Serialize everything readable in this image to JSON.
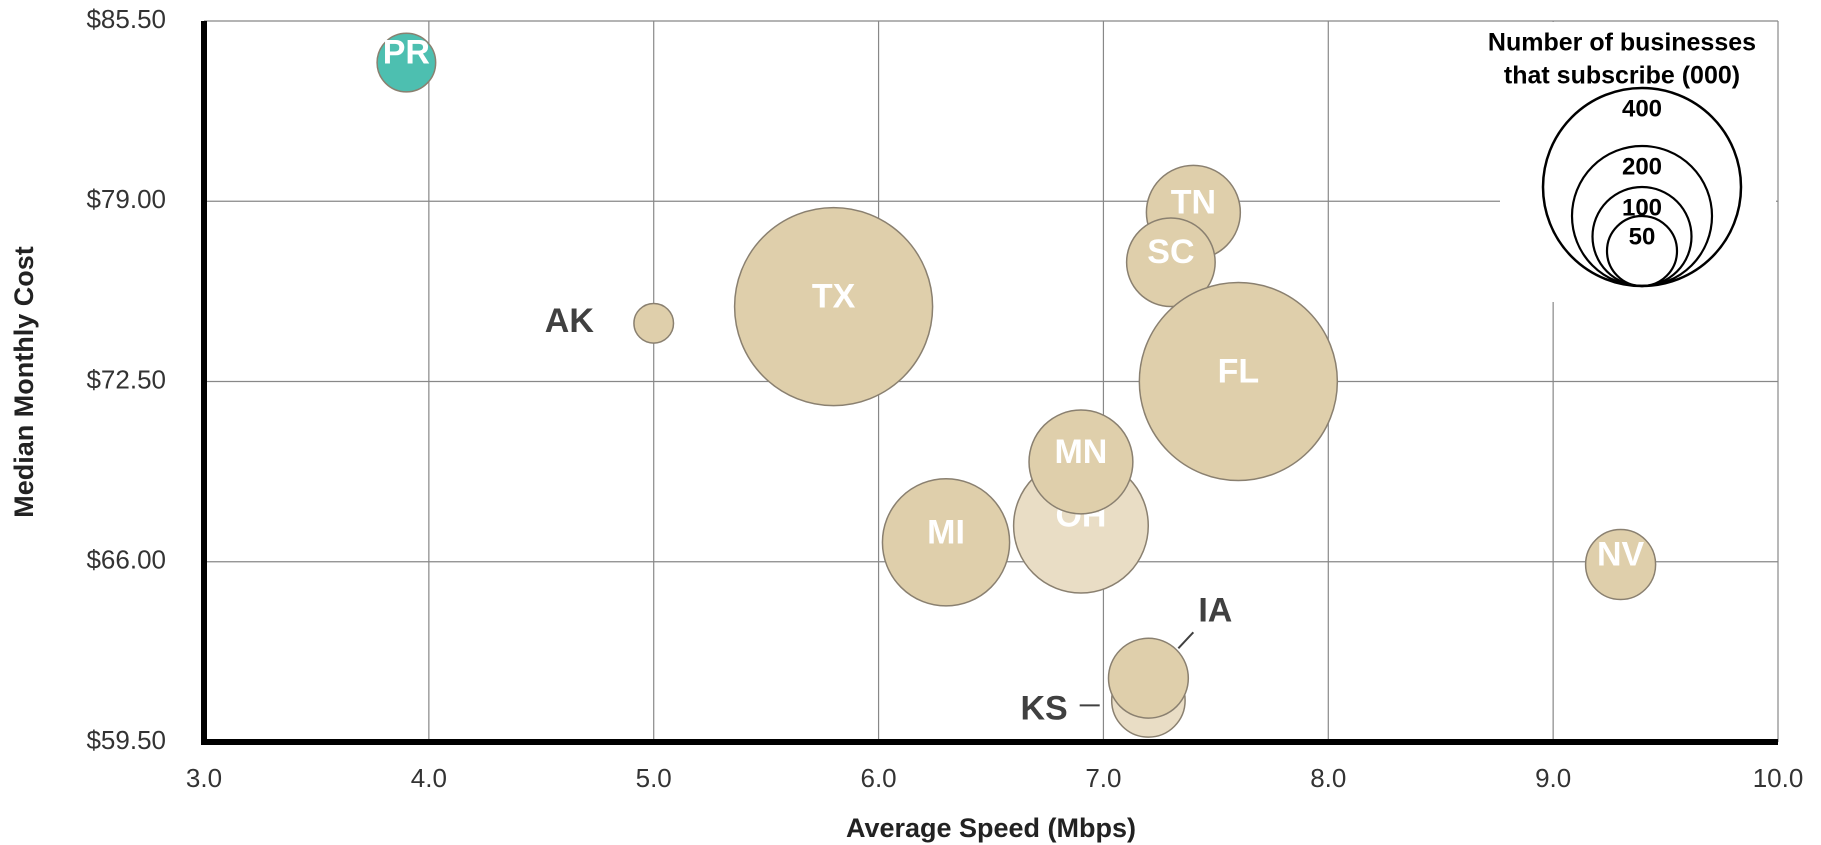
{
  "chart_data": {
    "type": "bubble",
    "x_label": "Average Speed (Mbps)",
    "y_label": "Median Monthly Cost",
    "xlim": [
      3,
      10
    ],
    "xticks": [
      {
        "value": 3,
        "label": "3.0"
      },
      {
        "value": 4,
        "label": "4.0"
      },
      {
        "value": 5,
        "label": "5.0"
      },
      {
        "value": 6,
        "label": "6.0"
      },
      {
        "value": 7,
        "label": "7.0"
      },
      {
        "value": 8,
        "label": "8.0"
      },
      {
        "value": 9,
        "label": "9.0"
      },
      {
        "value": 10,
        "label": "10.0"
      }
    ],
    "ylim": [
      59.5,
      85.5
    ],
    "yticks": [
      {
        "value": 59.5,
        "label": "$59.50"
      },
      {
        "value": 66,
        "label": "$66.00"
      },
      {
        "value": 72.5,
        "label": "$72.50"
      },
      {
        "value": 79,
        "label": "$79.00"
      },
      {
        "value": 85.5,
        "label": "$85.50"
      }
    ],
    "grid": true,
    "points": [
      {
        "label": "PR",
        "x": 3.9,
        "y": 84.0,
        "size": 35,
        "color": "#4dbfb0",
        "label_color": "#ffffff"
      },
      {
        "label": "AK",
        "x": 5.0,
        "y": 74.6,
        "size": 16,
        "color": "#dfcfab",
        "label_color": "#404040"
      },
      {
        "label": "TX",
        "x": 5.8,
        "y": 75.2,
        "size": 400,
        "color": "#dfcfab",
        "label_color": "#ffffff"
      },
      {
        "label": "TN",
        "x": 7.4,
        "y": 78.6,
        "size": 90,
        "color": "#dfcfab",
        "label_color": "#ffffff"
      },
      {
        "label": "SC",
        "x": 7.3,
        "y": 76.8,
        "size": 80,
        "color": "#dfcfab",
        "label_color": "#ffffff"
      },
      {
        "label": "FL",
        "x": 7.6,
        "y": 72.5,
        "size": 400,
        "color": "#dfcfab",
        "label_color": "#ffffff"
      },
      {
        "label": "OH",
        "x": 6.9,
        "y": 67.3,
        "size": 185,
        "color": "#e9ddc5",
        "label_color": "#ffffff"
      },
      {
        "label": "MN",
        "x": 6.9,
        "y": 69.6,
        "size": 110,
        "color": "#dfcfab",
        "label_color": "#ffffff"
      },
      {
        "label": "MI",
        "x": 6.3,
        "y": 66.7,
        "size": 165,
        "color": "#dfcfab",
        "label_color": "#ffffff"
      },
      {
        "label": "NV",
        "x": 9.3,
        "y": 65.9,
        "size": 50,
        "color": "#dfcfab",
        "label_color": "#ffffff"
      },
      {
        "label": "KS",
        "x": 7.2,
        "y": 61.0,
        "size": 55,
        "color": "#e9ddc5",
        "label_color": "#404040"
      },
      {
        "label": "IA",
        "x": 7.2,
        "y": 61.8,
        "size": 65,
        "color": "#dfcfab",
        "label_color": "#404040"
      }
    ],
    "size_legend": {
      "title": [
        "Number of businesses",
        "that subscribe (000)"
      ],
      "sizes": [
        400,
        200,
        100,
        50
      ]
    }
  }
}
